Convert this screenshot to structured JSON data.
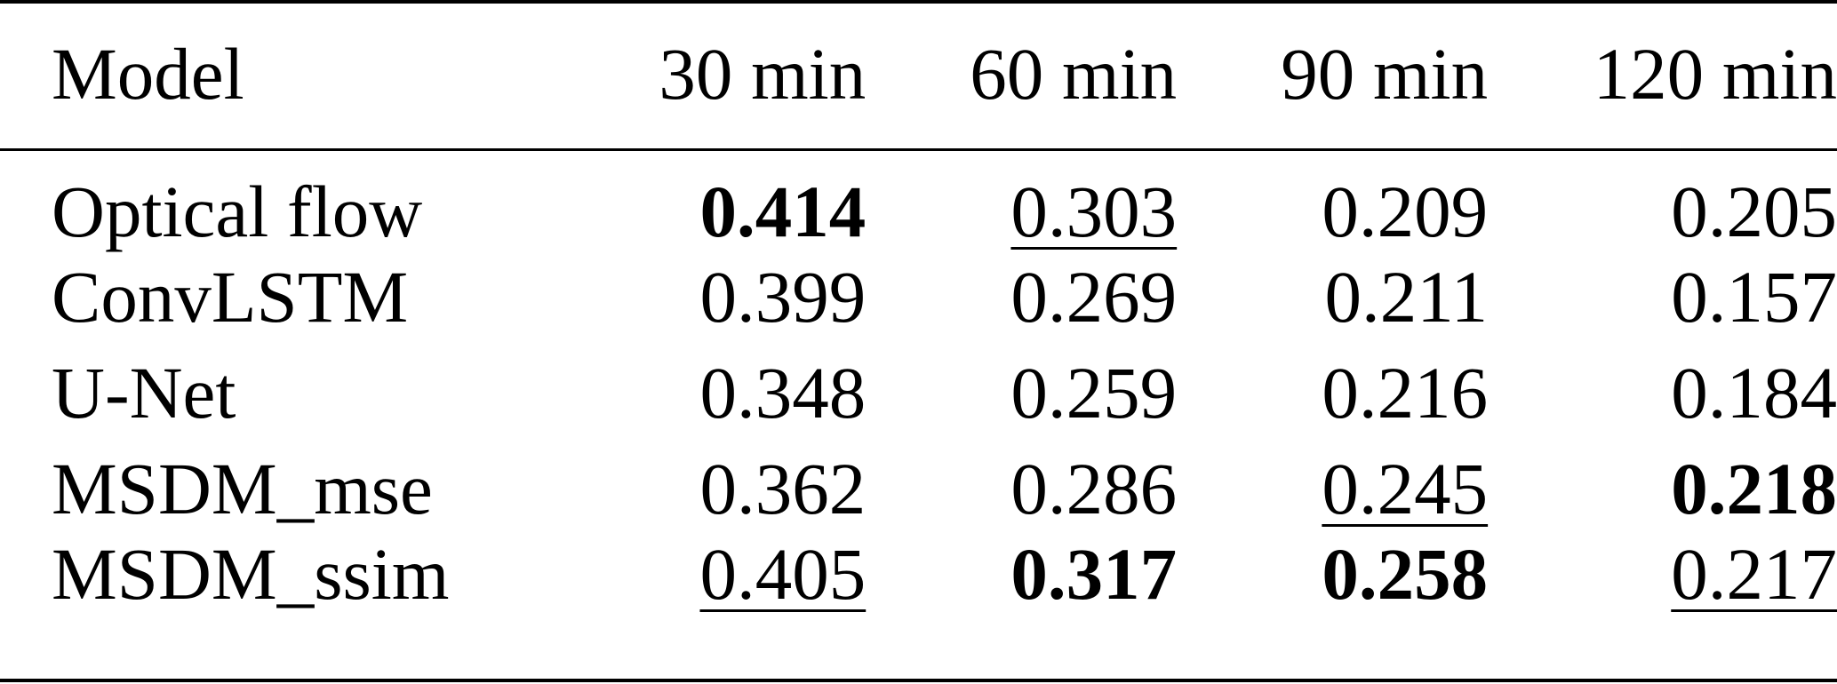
{
  "table": {
    "columns": [
      "Model",
      "30 min",
      "60 min",
      "90 min",
      "120 min"
    ],
    "rows": [
      {
        "model": "Optical flow",
        "values": [
          "0.414",
          "0.303",
          "0.209",
          "0.205"
        ],
        "styles": [
          "bold",
          "underline",
          "",
          ""
        ]
      },
      {
        "model": "ConvLSTM",
        "values": [
          "0.399",
          "0.269",
          "0.211",
          "0.157"
        ],
        "styles": [
          "",
          "",
          "",
          ""
        ]
      },
      {
        "model": "U-Net",
        "values": [
          "0.348",
          "0.259",
          "0.216",
          "0.184"
        ],
        "styles": [
          "",
          "",
          "",
          ""
        ]
      },
      {
        "model": "MSDM_mse",
        "values": [
          "0.362",
          "0.286",
          "0.245",
          "0.218"
        ],
        "styles": [
          "",
          "",
          "underline",
          "bold"
        ]
      },
      {
        "model": "MSDM_ssim",
        "values": [
          "0.405",
          "0.317",
          "0.258",
          "0.217"
        ],
        "styles": [
          "underline",
          "bold",
          "bold",
          "underline"
        ]
      }
    ]
  }
}
